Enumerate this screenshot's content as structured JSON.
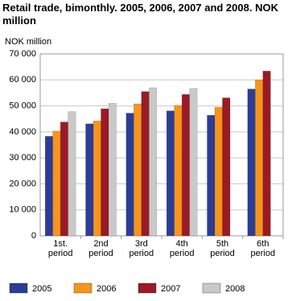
{
  "chart_data": {
    "type": "bar",
    "title": "Retail trade, bimonthly. 2005, 2006, 2007 and 2008. NOK million",
    "y_label": "NOK million",
    "categories": [
      "1st. period",
      "2nd period",
      "3rd period",
      "4th period",
      "5th period",
      "6th period"
    ],
    "series": [
      {
        "name": "2005",
        "color": "#2b3d97",
        "values": [
          38300,
          43100,
          47200,
          48100,
          46400,
          56500
        ]
      },
      {
        "name": "2006",
        "color": "#f7941d",
        "values": [
          40300,
          44200,
          50800,
          50200,
          49500,
          60000
        ]
      },
      {
        "name": "2007",
        "color": "#9b1b24",
        "values": [
          43800,
          48900,
          55500,
          54400,
          53100,
          63400
        ]
      },
      {
        "name": "2008",
        "color": "#c9c9c9",
        "values": [
          47800,
          51000,
          57000,
          56700,
          null,
          null
        ]
      }
    ],
    "ylim": [
      0,
      70000
    ],
    "yticks": [
      0,
      {
        "value": 10000,
        "label": "10 000"
      },
      {
        "value": 20000,
        "label": "20 000"
      },
      {
        "value": 30000,
        "label": "30 000"
      },
      {
        "value": 40000,
        "label": "40 000"
      },
      {
        "value": 50000,
        "label": "50 000"
      },
      {
        "value": 60000,
        "label": "60 000"
      },
      {
        "value": 70000,
        "label": "70 000"
      }
    ],
    "grid": true
  }
}
